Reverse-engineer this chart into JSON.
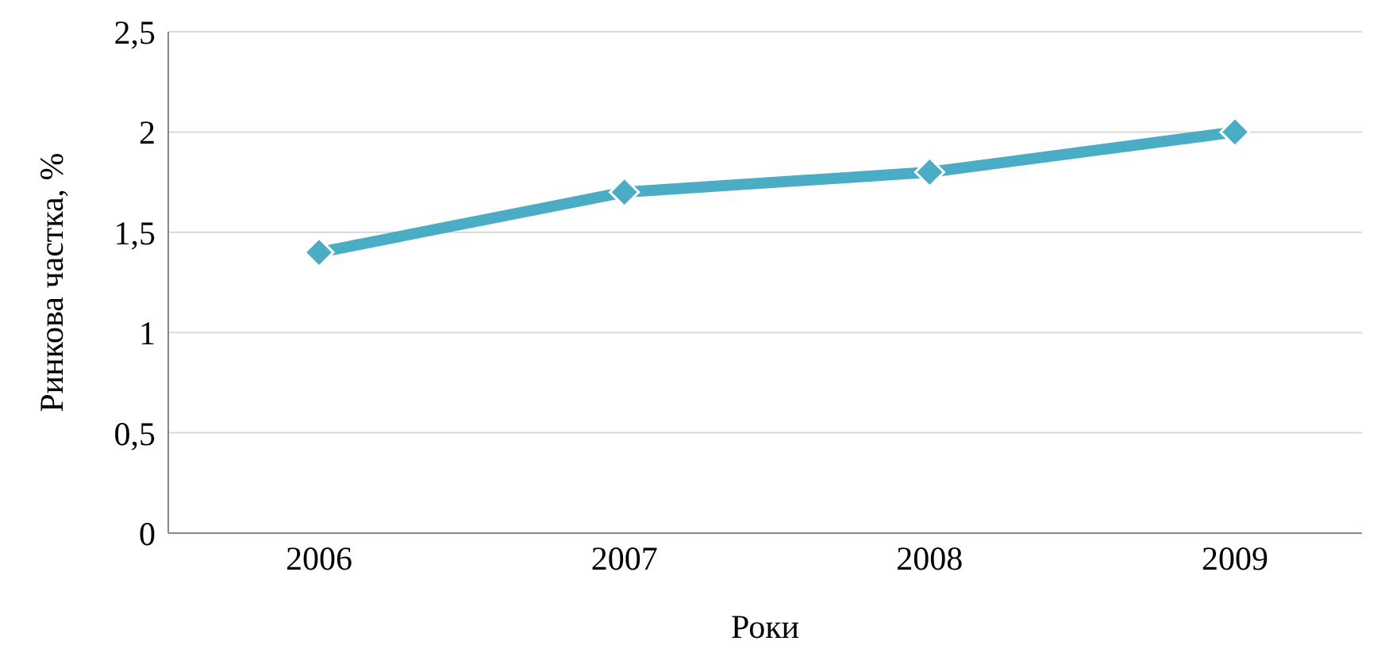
{
  "chart_data": {
    "type": "line",
    "xlabel": "Роки",
    "ylabel": "Ринкова частка, %",
    "categories": [
      "2006",
      "2007",
      "2008",
      "2009"
    ],
    "series": [
      {
        "color": "#4bacc6",
        "values": [
          1.4,
          1.7,
          1.8,
          2
        ]
      }
    ],
    "ylim": [
      0,
      2.5
    ],
    "yticks": [
      {
        "value": 0,
        "label": "0"
      },
      {
        "value": 0.5,
        "label": "0,5"
      },
      {
        "value": 1,
        "label": "1"
      },
      {
        "value": 1.5,
        "label": "1,5"
      },
      {
        "value": 2,
        "label": "2"
      },
      {
        "value": 2.5,
        "label": "2,5"
      }
    ],
    "grid": "y",
    "marker": "diamond",
    "line_style": "solid",
    "legend": false
  }
}
